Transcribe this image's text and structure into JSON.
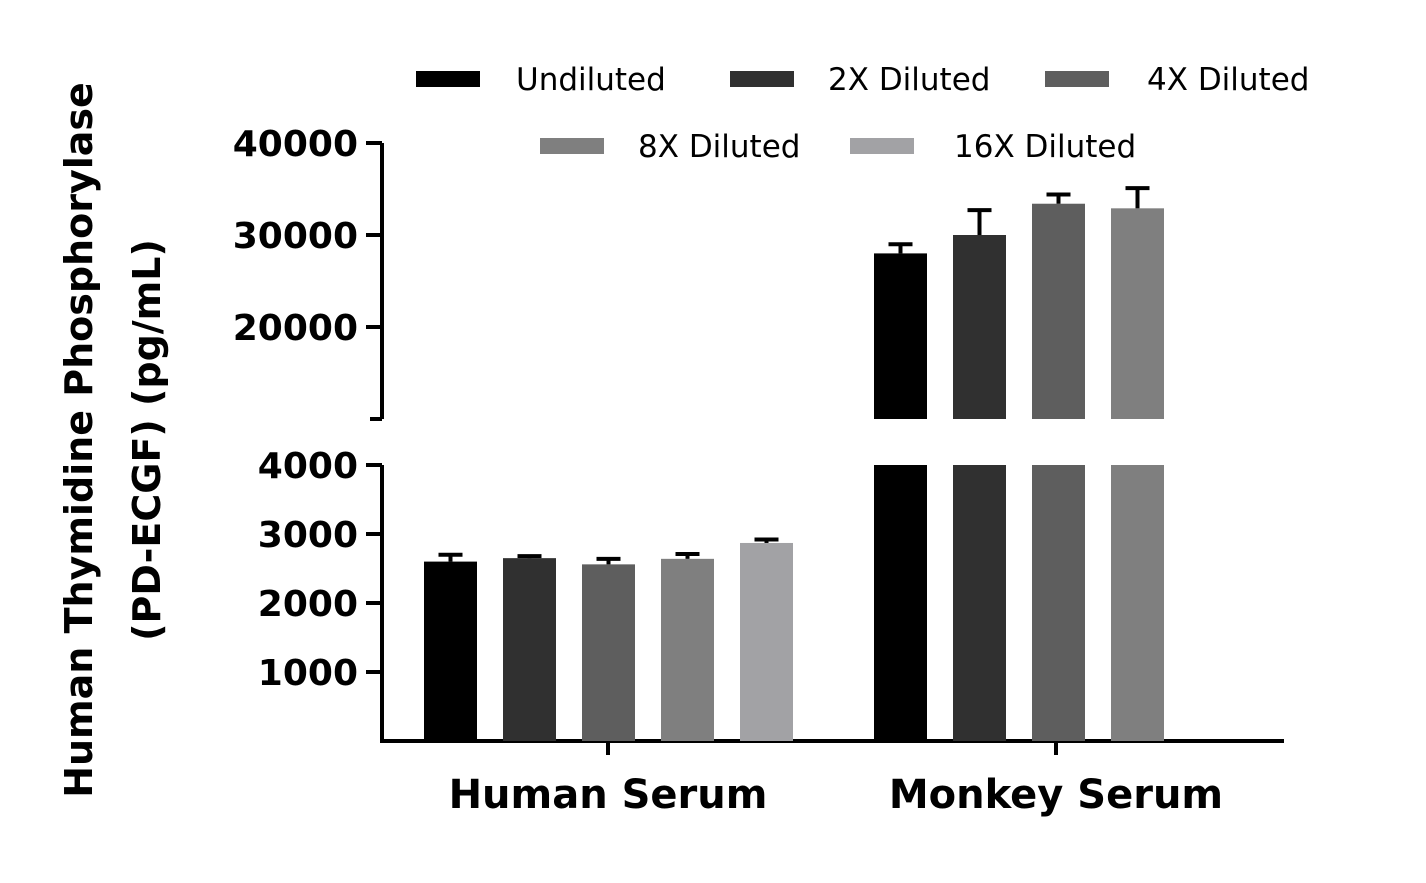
{
  "chart_data": {
    "type": "bar",
    "title": "",
    "xlabel": "",
    "ylabel_lines": [
      "Human Thymidine Phosphorylase",
      "(PD-ECGF) (pg/mL)"
    ],
    "categories": [
      "Human Serum",
      "Monkey Serum"
    ],
    "axis_break": {
      "lower_range": [
        0,
        4000
      ],
      "upper_range": [
        10000,
        40000
      ]
    },
    "yticks_lower": [
      "1000",
      "2000",
      "3000",
      "4000"
    ],
    "yticks_upper": [
      "20000",
      "30000",
      "40000"
    ],
    "legend_position": "top",
    "series": [
      {
        "name": "Undiluted",
        "color": "#000000",
        "values": [
          2600,
          28000
        ],
        "errors": [
          100,
          1000
        ]
      },
      {
        "name": "2X Diluted",
        "color": "#303030",
        "values": [
          2650,
          30000
        ],
        "errors": [
          30,
          2700
        ]
      },
      {
        "name": "4X Diluted",
        "color": "#5e5e5e",
        "values": [
          2560,
          33400
        ],
        "errors": [
          80,
          1000
        ]
      },
      {
        "name": "8X Diluted",
        "color": "#7f7f7f",
        "values": [
          2640,
          32900
        ],
        "errors": [
          70,
          2200
        ]
      },
      {
        "name": "16X Diluted",
        "color": "#a2a2a5",
        "values": [
          2870,
          null
        ],
        "errors": [
          50,
          null
        ]
      }
    ]
  }
}
